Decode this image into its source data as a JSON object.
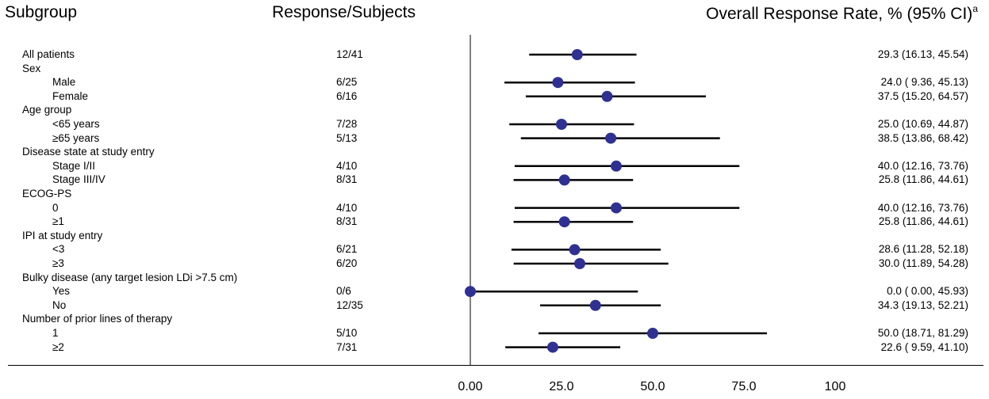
{
  "headers": {
    "subgroup": "Subgroup",
    "response_subjects": "Response/Subjects",
    "overall_response_rate": "Overall Response Rate, % (95% CI)",
    "superscript": "a"
  },
  "x_tick_labels": [
    "0.00",
    "25.0",
    "50.0",
    "75.0",
    "100"
  ],
  "colors": {
    "point": "#2e3192",
    "line": "#000000"
  },
  "chart_data": {
    "type": "forest",
    "title": "",
    "xlabel": "",
    "ylabel": "",
    "xlim": [
      0,
      100
    ],
    "x_ticks": [
      0,
      25,
      50,
      75,
      100
    ],
    "reference_line": 0,
    "rows": [
      {
        "label": "All patients",
        "indent": 0,
        "resp": "12/41",
        "text": "29.3 (16.13, 45.54)",
        "est": 29.3,
        "lo": 16.13,
        "hi": 45.54
      },
      {
        "label": "Sex",
        "indent": 0,
        "header": true
      },
      {
        "label": "Male",
        "indent": 1,
        "resp": "6/25",
        "text": "24.0 ( 9.36, 45.13)",
        "est": 24.0,
        "lo": 9.36,
        "hi": 45.13
      },
      {
        "label": "Female",
        "indent": 1,
        "resp": "6/16",
        "text": "37.5 (15.20, 64.57)",
        "est": 37.5,
        "lo": 15.2,
        "hi": 64.57
      },
      {
        "label": "Age group",
        "indent": 0,
        "header": true
      },
      {
        "label": "<65 years",
        "indent": 1,
        "resp": "7/28",
        "text": "25.0 (10.69, 44.87)",
        "est": 25.0,
        "lo": 10.69,
        "hi": 44.87
      },
      {
        "label": "≥65 years",
        "indent": 1,
        "resp": "5/13",
        "text": "38.5 (13.86, 68.42)",
        "est": 38.5,
        "lo": 13.86,
        "hi": 68.42
      },
      {
        "label": "Disease state at study entry",
        "indent": 0,
        "header": true
      },
      {
        "label": "Stage I/II",
        "indent": 1,
        "resp": "4/10",
        "text": "40.0 (12.16, 73.76)",
        "est": 40.0,
        "lo": 12.16,
        "hi": 73.76
      },
      {
        "label": "Stage III/IV",
        "indent": 1,
        "resp": "8/31",
        "text": "25.8 (11.86, 44.61)",
        "est": 25.8,
        "lo": 11.86,
        "hi": 44.61
      },
      {
        "label": "ECOG-PS",
        "indent": 0,
        "header": true
      },
      {
        "label": "0",
        "indent": 1,
        "resp": "4/10",
        "text": "40.0 (12.16, 73.76)",
        "est": 40.0,
        "lo": 12.16,
        "hi": 73.76
      },
      {
        "label": "≥1",
        "indent": 1,
        "resp": "8/31",
        "text": "25.8 (11.86, 44.61)",
        "est": 25.8,
        "lo": 11.86,
        "hi": 44.61
      },
      {
        "label": "IPI at study entry",
        "indent": 0,
        "header": true
      },
      {
        "label": "<3",
        "indent": 1,
        "resp": "6/21",
        "text": "28.6 (11.28, 52.18)",
        "est": 28.6,
        "lo": 11.28,
        "hi": 52.18
      },
      {
        "label": "≥3",
        "indent": 1,
        "resp": "6/20",
        "text": "30.0 (11.89, 54.28)",
        "est": 30.0,
        "lo": 11.89,
        "hi": 54.28
      },
      {
        "label": "Bulky disease (any target lesion LDi >7.5 cm)",
        "indent": 0,
        "header": true
      },
      {
        "label": "Yes",
        "indent": 1,
        "resp": "0/6",
        "text": "0.0 ( 0.00, 45.93)",
        "est": 0.0,
        "lo": 0.0,
        "hi": 45.93
      },
      {
        "label": "No",
        "indent": 1,
        "resp": "12/35",
        "text": "34.3 (19.13, 52.21)",
        "est": 34.3,
        "lo": 19.13,
        "hi": 52.21
      },
      {
        "label": "Number of prior lines of therapy",
        "indent": 0,
        "header": true
      },
      {
        "label": "1",
        "indent": 1,
        "resp": "5/10",
        "text": "50.0 (18.71, 81.29)",
        "est": 50.0,
        "lo": 18.71,
        "hi": 81.29
      },
      {
        "label": "≥2",
        "indent": 1,
        "resp": "7/31",
        "text": "22.6 ( 9.59, 41.10)",
        "est": 22.6,
        "lo": 9.59,
        "hi": 41.1
      }
    ]
  }
}
